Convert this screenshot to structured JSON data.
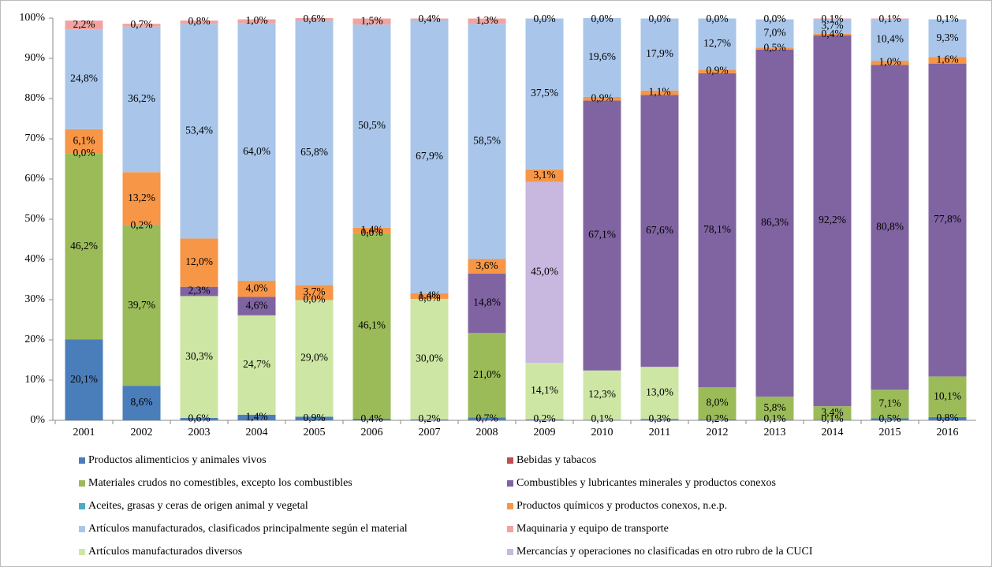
{
  "chart_data": {
    "type": "bar",
    "stacked": true,
    "categories": [
      "2001",
      "2002",
      "2003",
      "2004",
      "2005",
      "2006",
      "2007",
      "2008",
      "2009",
      "2010",
      "2011",
      "2012",
      "2013",
      "2014",
      "2015",
      "2016"
    ],
    "ylim": [
      0,
      100
    ],
    "yticks": [
      {
        "value": 0,
        "label": "0%"
      },
      {
        "value": 10,
        "label": "10%"
      },
      {
        "value": 20,
        "label": "20%"
      },
      {
        "value": 30,
        "label": "30%"
      },
      {
        "value": 40,
        "label": "40%"
      },
      {
        "value": 50,
        "label": "50%"
      },
      {
        "value": 60,
        "label": "60%"
      },
      {
        "value": 70,
        "label": "70%"
      },
      {
        "value": 80,
        "label": "80%"
      },
      {
        "value": 90,
        "label": "90%"
      },
      {
        "value": 100,
        "label": "100%"
      }
    ],
    "series": [
      {
        "name": "Productos alimenticios y animales vivos",
        "color": "#4a7ebb",
        "values": [
          20.1,
          8.6,
          0.6,
          1.4,
          0.9,
          0.4,
          0.2,
          0.7,
          0.2,
          0.1,
          0.3,
          0.2,
          0.1,
          0.1,
          0.5,
          0.8
        ],
        "value_labels": [
          "20,1%",
          "8,6%",
          "0,6%",
          "1,4%",
          "0,9%",
          "0,4%",
          "0,2%",
          "0,7%",
          "0,2%",
          "0,1%",
          "0,3%",
          "0,2%",
          "0,1%",
          "0,1%",
          "0,5%",
          "0,8%"
        ]
      },
      {
        "name": "Bebidas y tabacos",
        "color": "#c0504d",
        "values": [
          0,
          0,
          0,
          0,
          0,
          0,
          0,
          0,
          0,
          0,
          0,
          0,
          0,
          0,
          0,
          0
        ],
        "value_labels": [
          null,
          null,
          null,
          null,
          null,
          null,
          null,
          null,
          null,
          null,
          null,
          null,
          null,
          null,
          null,
          null
        ]
      },
      {
        "name": "Materiales crudos no comestibles, excepto los combustibles",
        "color": "#9bbb59",
        "values": [
          46.2,
          39.7,
          0,
          0,
          0,
          46.1,
          0,
          21.0,
          0,
          0,
          0,
          8.0,
          5.8,
          3.4,
          7.1,
          10.1
        ],
        "value_labels": [
          "46,2%",
          "39,7%",
          null,
          null,
          null,
          "46,1%",
          null,
          "21,0%",
          null,
          null,
          null,
          "8,0%",
          "5,8%",
          "3,4%",
          "7,1%",
          "10,1%"
        ]
      },
      {
        "name": "Combustibles y lubricantes minerales y productos conexos",
        "color": "#8064a2",
        "values": [
          0,
          0,
          2.3,
          4.6,
          0,
          0,
          0,
          14.8,
          0,
          67.1,
          67.6,
          78.1,
          86.3,
          92.2,
          80.8,
          77.8
        ],
        "value_labels": [
          null,
          null,
          "2,3%",
          "4,6%",
          null,
          null,
          null,
          "14,8%",
          null,
          "67,1%",
          "67,6%",
          "78,1%",
          "86,3%",
          "92,2%",
          "80,8%",
          "77,8%"
        ]
      },
      {
        "name": "Aceites, grasas y ceras de origen animal y vegetal",
        "color": "#4bacc6",
        "values": [
          0.0,
          0.2,
          0,
          0,
          0.0,
          0.0,
          0.0,
          0,
          0,
          0,
          0,
          0,
          0,
          0,
          0,
          0
        ],
        "value_labels": [
          "0,0%",
          "0,2%",
          null,
          null,
          "0,0%",
          "0,0%",
          "0,0%",
          null,
          null,
          null,
          null,
          null,
          null,
          null,
          null,
          null
        ]
      },
      {
        "name": "Productos químicos y productos conexos, n.e.p.",
        "color": "#f79646",
        "values": [
          6.1,
          13.2,
          12.0,
          4.0,
          3.7,
          1.4,
          1.4,
          3.6,
          3.1,
          0.9,
          1.1,
          0.9,
          0.5,
          0.4,
          1.0,
          1.6
        ],
        "value_labels": [
          "6,1%",
          "13,2%",
          "12,0%",
          "4,0%",
          "3,7%",
          "1,4%",
          "1,4%",
          "3,6%",
          "3,1%",
          "0,9%",
          "1,1%",
          "0,9%",
          "0,5%",
          "0,4%",
          "1,0%",
          "1,6%"
        ]
      },
      {
        "name": "Artículos manufacturados, clasificados principalmente según el material",
        "color": "#a9c6ea",
        "values": [
          24.8,
          36.2,
          53.4,
          64.0,
          65.8,
          50.5,
          67.9,
          58.5,
          37.5,
          19.6,
          17.9,
          12.7,
          7.0,
          3.7,
          10.4,
          9.3
        ],
        "value_labels": [
          "24,8%",
          "36,2%",
          "53,4%",
          "64,0%",
          "65,8%",
          "50,5%",
          "67,9%",
          "58,5%",
          "37,5%",
          "19,6%",
          "17,9%",
          "12,7%",
          "7,0%",
          "3,7%",
          "10,4%",
          "9,3%"
        ]
      },
      {
        "name": "Maquinaria y equipo de transporte",
        "color": "#f2a3a1",
        "values": [
          2.2,
          0.7,
          0.8,
          1.0,
          0.6,
          1.5,
          0.4,
          1.3,
          0.0,
          0.0,
          0.0,
          0.0,
          0.0,
          0.1,
          0.1,
          0.1
        ],
        "value_labels": [
          "2,2%",
          "0,7%",
          "0,8%",
          "1,0%",
          "0,6%",
          "1,5%",
          "0,4%",
          "1,3%",
          "0,0%",
          "0,0%",
          "0,0%",
          "0,0%",
          "0,0%",
          "0,1%",
          "0,1%",
          "0,1%"
        ]
      },
      {
        "name": "Artículos manufacturados diversos",
        "color": "#cde6a4",
        "values": [
          0,
          0,
          30.3,
          24.7,
          29.0,
          0,
          30.0,
          0,
          14.1,
          12.3,
          13.0,
          0,
          0,
          0,
          0,
          0
        ],
        "value_labels": [
          null,
          null,
          "30,3%",
          "24,7%",
          "29,0%",
          null,
          "30,0%",
          null,
          "14,1%",
          "12,3%",
          "13,0%",
          null,
          null,
          null,
          null,
          null
        ]
      },
      {
        "name": "Mercancías y operaciones no clasificadas en otro rubro de la CUCI",
        "color": "#c8b8df",
        "values": [
          0,
          0,
          0,
          0,
          0,
          0,
          0,
          0,
          45.0,
          0,
          0,
          0,
          0,
          0,
          0,
          0
        ],
        "value_labels": [
          null,
          null,
          null,
          null,
          null,
          null,
          null,
          null,
          "45,0%",
          null,
          null,
          null,
          null,
          null,
          null,
          null
        ]
      }
    ]
  }
}
